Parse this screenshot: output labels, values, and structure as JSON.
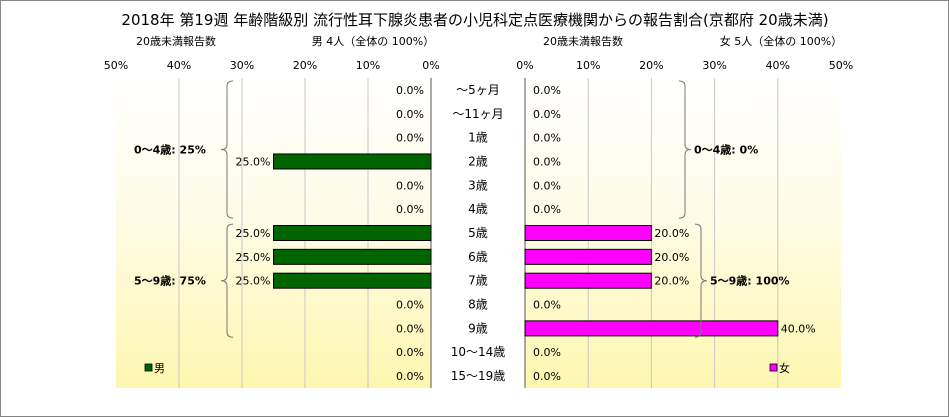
{
  "chart_data": {
    "type": "bar",
    "title": "2018年 第19週 年齢階級別 流行性耳下腺炎患者の小児科定点医療機関からの報告割合(京都府 20歳未満)",
    "categories": [
      "～5ヶ月",
      "～11ヶ月",
      "1歳",
      "2歳",
      "3歳",
      "4歳",
      "5歳",
      "6歳",
      "7歳",
      "8歳",
      "9歳",
      "10～14歳",
      "15～19歳"
    ],
    "xlim": [
      0,
      50
    ],
    "xticks": [
      "50%",
      "40%",
      "30%",
      "20%",
      "10%",
      "0%"
    ],
    "xticks_right": [
      "0%",
      "10%",
      "20%",
      "30%",
      "40%",
      "50%"
    ],
    "grid": true,
    "panels": [
      {
        "side": "left",
        "subtitle_count": "20歳未満報告数",
        "subtitle_total": "男 4人（全体の 100%）",
        "legend": "男",
        "legend_position": "bottom-left",
        "color": "#006400",
        "values": [
          0,
          0,
          0,
          25,
          0,
          0,
          25,
          25,
          25,
          0,
          0,
          0,
          0
        ],
        "labels": [
          "0.0%",
          "0.0%",
          "0.0%",
          "25.0%",
          "0.0%",
          "0.0%",
          "25.0%",
          "25.0%",
          "25.0%",
          "0.0%",
          "0.0%",
          "0.0%",
          "0.0%"
        ],
        "brackets": [
          {
            "label": "0～4歳: 25%",
            "from": 0,
            "to": 5
          },
          {
            "label": "5～9歳: 75%",
            "from": 6,
            "to": 10
          }
        ]
      },
      {
        "side": "right",
        "subtitle_count": "20歳未満報告数",
        "subtitle_total": "女 5人（全体の 100%）",
        "legend": "女",
        "legend_position": "bottom-right",
        "color": "#ff00ff",
        "values": [
          0,
          0,
          0,
          0,
          0,
          0,
          20,
          20,
          20,
          0,
          40,
          0,
          0
        ],
        "labels": [
          "0.0%",
          "0.0%",
          "0.0%",
          "0.0%",
          "0.0%",
          "0.0%",
          "20.0%",
          "20.0%",
          "20.0%",
          "0.0%",
          "40.0%",
          "0.0%",
          "0.0%"
        ],
        "brackets": [
          {
            "label": "0～4歳: 0%",
            "from": 0,
            "to": 5
          },
          {
            "label": "5～9歳: 100%",
            "from": 6,
            "to": 10
          }
        ]
      }
    ]
  }
}
